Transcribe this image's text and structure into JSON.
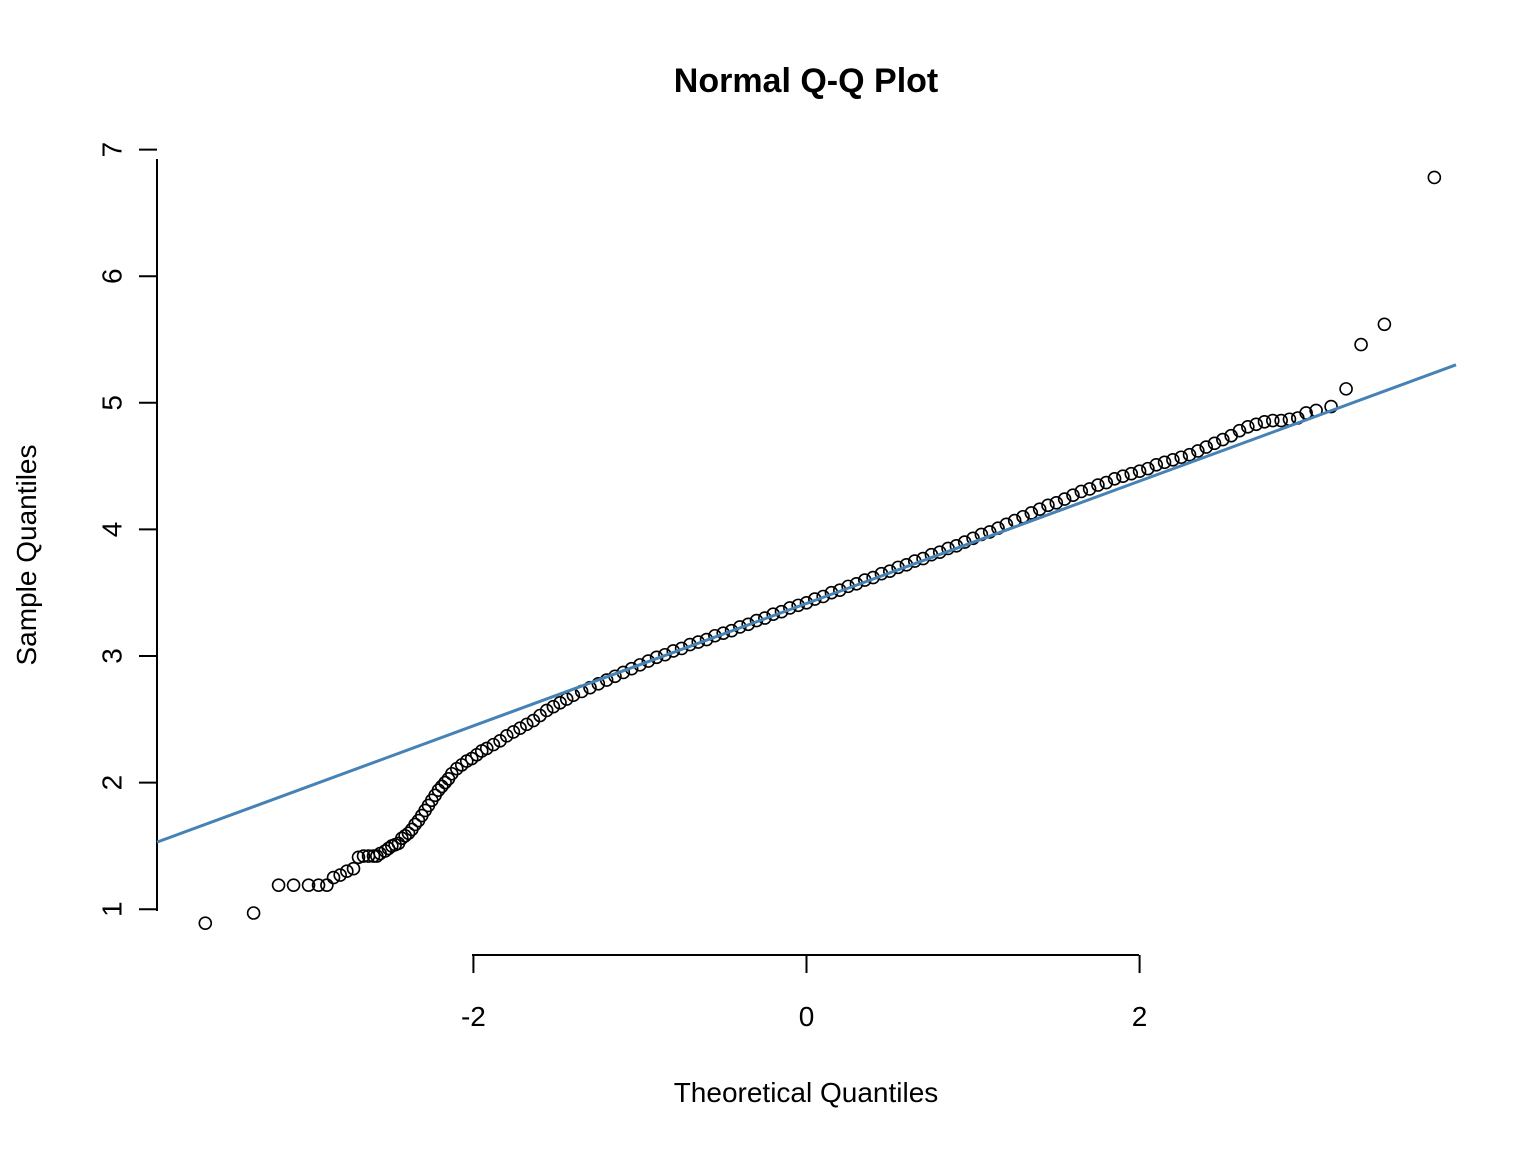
{
  "colors": {
    "ref_line": "#4682B4",
    "points": "#000000",
    "axis": "#000000"
  },
  "chart_data": {
    "type": "scatter",
    "title": "Normal Q-Q Plot",
    "xlabel": "Theoretical Quantiles",
    "ylabel": "Sample Quantiles",
    "xlim": [
      -3.9,
      3.9
    ],
    "ylim": [
      0.82,
      7.06
    ],
    "x_ticks": [
      -2,
      0,
      2
    ],
    "x_tick_labels": [
      "-2",
      "0",
      "2"
    ],
    "y_ticks": [
      1,
      2,
      3,
      4,
      5,
      6,
      7
    ],
    "y_tick_labels": [
      "1",
      "2",
      "3",
      "4",
      "5",
      "6",
      "7"
    ],
    "grid": false,
    "legend": "none",
    "marker": "open-circle",
    "reference_line": {
      "x": [
        -3.9,
        3.9
      ],
      "y": [
        1.53,
        5.3
      ]
    },
    "points": [
      [
        -3.61,
        0.89
      ],
      [
        -3.32,
        0.97
      ],
      [
        -3.17,
        1.19
      ],
      [
        -3.08,
        1.19
      ],
      [
        -2.99,
        1.19
      ],
      [
        -2.93,
        1.19
      ],
      [
        -2.88,
        1.19
      ],
      [
        -2.84,
        1.25
      ],
      [
        -2.8,
        1.27
      ],
      [
        -2.76,
        1.3
      ],
      [
        -2.72,
        1.32
      ],
      [
        -2.69,
        1.41
      ],
      [
        -2.66,
        1.42
      ],
      [
        -2.63,
        1.42
      ],
      [
        -2.6,
        1.42
      ],
      [
        -2.58,
        1.42
      ],
      [
        -2.56,
        1.44
      ],
      [
        -2.53,
        1.46
      ],
      [
        -2.51,
        1.48
      ],
      [
        -2.49,
        1.5
      ],
      [
        -2.47,
        1.51
      ],
      [
        -2.45,
        1.52
      ],
      [
        -2.43,
        1.56
      ],
      [
        -2.41,
        1.58
      ],
      [
        -2.39,
        1.6
      ],
      [
        -2.37,
        1.63
      ],
      [
        -2.35,
        1.67
      ],
      [
        -2.33,
        1.7
      ],
      [
        -2.31,
        1.74
      ],
      [
        -2.29,
        1.78
      ],
      [
        -2.27,
        1.82
      ],
      [
        -2.25,
        1.86
      ],
      [
        -2.23,
        1.9
      ],
      [
        -2.21,
        1.94
      ],
      [
        -2.19,
        1.97
      ],
      [
        -2.17,
        2.0
      ],
      [
        -2.15,
        2.03
      ],
      [
        -2.13,
        2.07
      ],
      [
        -2.1,
        2.11
      ],
      [
        -2.07,
        2.14
      ],
      [
        -2.04,
        2.17
      ],
      [
        -2.01,
        2.19
      ],
      [
        -1.98,
        2.22
      ],
      [
        -1.95,
        2.25
      ],
      [
        -1.92,
        2.27
      ],
      [
        -1.88,
        2.3
      ],
      [
        -1.84,
        2.33
      ],
      [
        -1.8,
        2.37
      ],
      [
        -1.76,
        2.4
      ],
      [
        -1.72,
        2.43
      ],
      [
        -1.68,
        2.46
      ],
      [
        -1.64,
        2.49
      ],
      [
        -1.6,
        2.53
      ],
      [
        -1.56,
        2.57
      ],
      [
        -1.52,
        2.6
      ],
      [
        -1.48,
        2.63
      ],
      [
        -1.44,
        2.66
      ],
      [
        -1.4,
        2.69
      ],
      [
        -1.35,
        2.72
      ],
      [
        -1.3,
        2.75
      ],
      [
        -1.25,
        2.78
      ],
      [
        -1.2,
        2.81
      ],
      [
        -1.15,
        2.84
      ],
      [
        -1.1,
        2.87
      ],
      [
        -1.05,
        2.9
      ],
      [
        -1.0,
        2.93
      ],
      [
        -0.95,
        2.96
      ],
      [
        -0.9,
        2.99
      ],
      [
        -0.85,
        3.01
      ],
      [
        -0.8,
        3.04
      ],
      [
        -0.75,
        3.06
      ],
      [
        -0.7,
        3.09
      ],
      [
        -0.65,
        3.11
      ],
      [
        -0.6,
        3.13
      ],
      [
        -0.55,
        3.16
      ],
      [
        -0.5,
        3.18
      ],
      [
        -0.45,
        3.2
      ],
      [
        -0.4,
        3.23
      ],
      [
        -0.35,
        3.25
      ],
      [
        -0.3,
        3.28
      ],
      [
        -0.25,
        3.3
      ],
      [
        -0.2,
        3.33
      ],
      [
        -0.15,
        3.35
      ],
      [
        -0.1,
        3.38
      ],
      [
        -0.05,
        3.4
      ],
      [
        0.0,
        3.42
      ],
      [
        0.05,
        3.45
      ],
      [
        0.1,
        3.47
      ],
      [
        0.15,
        3.5
      ],
      [
        0.2,
        3.52
      ],
      [
        0.25,
        3.55
      ],
      [
        0.3,
        3.57
      ],
      [
        0.35,
        3.6
      ],
      [
        0.4,
        3.62
      ],
      [
        0.45,
        3.65
      ],
      [
        0.5,
        3.67
      ],
      [
        0.55,
        3.7
      ],
      [
        0.6,
        3.72
      ],
      [
        0.65,
        3.75
      ],
      [
        0.7,
        3.77
      ],
      [
        0.75,
        3.8
      ],
      [
        0.8,
        3.82
      ],
      [
        0.85,
        3.85
      ],
      [
        0.9,
        3.87
      ],
      [
        0.95,
        3.9
      ],
      [
        1.0,
        3.93
      ],
      [
        1.05,
        3.96
      ],
      [
        1.1,
        3.98
      ],
      [
        1.15,
        4.01
      ],
      [
        1.2,
        4.04
      ],
      [
        1.25,
        4.07
      ],
      [
        1.3,
        4.1
      ],
      [
        1.35,
        4.13
      ],
      [
        1.4,
        4.16
      ],
      [
        1.45,
        4.19
      ],
      [
        1.5,
        4.21
      ],
      [
        1.55,
        4.24
      ],
      [
        1.6,
        4.27
      ],
      [
        1.65,
        4.3
      ],
      [
        1.7,
        4.32
      ],
      [
        1.75,
        4.35
      ],
      [
        1.8,
        4.37
      ],
      [
        1.85,
        4.4
      ],
      [
        1.9,
        4.42
      ],
      [
        1.95,
        4.44
      ],
      [
        2.0,
        4.46
      ],
      [
        2.05,
        4.48
      ],
      [
        2.1,
        4.51
      ],
      [
        2.15,
        4.53
      ],
      [
        2.2,
        4.55
      ],
      [
        2.25,
        4.57
      ],
      [
        2.3,
        4.59
      ],
      [
        2.35,
        4.62
      ],
      [
        2.4,
        4.65
      ],
      [
        2.45,
        4.68
      ],
      [
        2.5,
        4.71
      ],
      [
        2.55,
        4.74
      ],
      [
        2.6,
        4.78
      ],
      [
        2.65,
        4.81
      ],
      [
        2.7,
        4.83
      ],
      [
        2.75,
        4.85
      ],
      [
        2.8,
        4.86
      ],
      [
        2.85,
        4.86
      ],
      [
        2.9,
        4.87
      ],
      [
        2.95,
        4.88
      ],
      [
        3.0,
        4.92
      ],
      [
        3.06,
        4.94
      ],
      [
        3.15,
        4.97
      ],
      [
        3.24,
        5.11
      ],
      [
        3.33,
        5.46
      ],
      [
        3.47,
        5.62
      ],
      [
        3.77,
        6.78
      ]
    ]
  }
}
